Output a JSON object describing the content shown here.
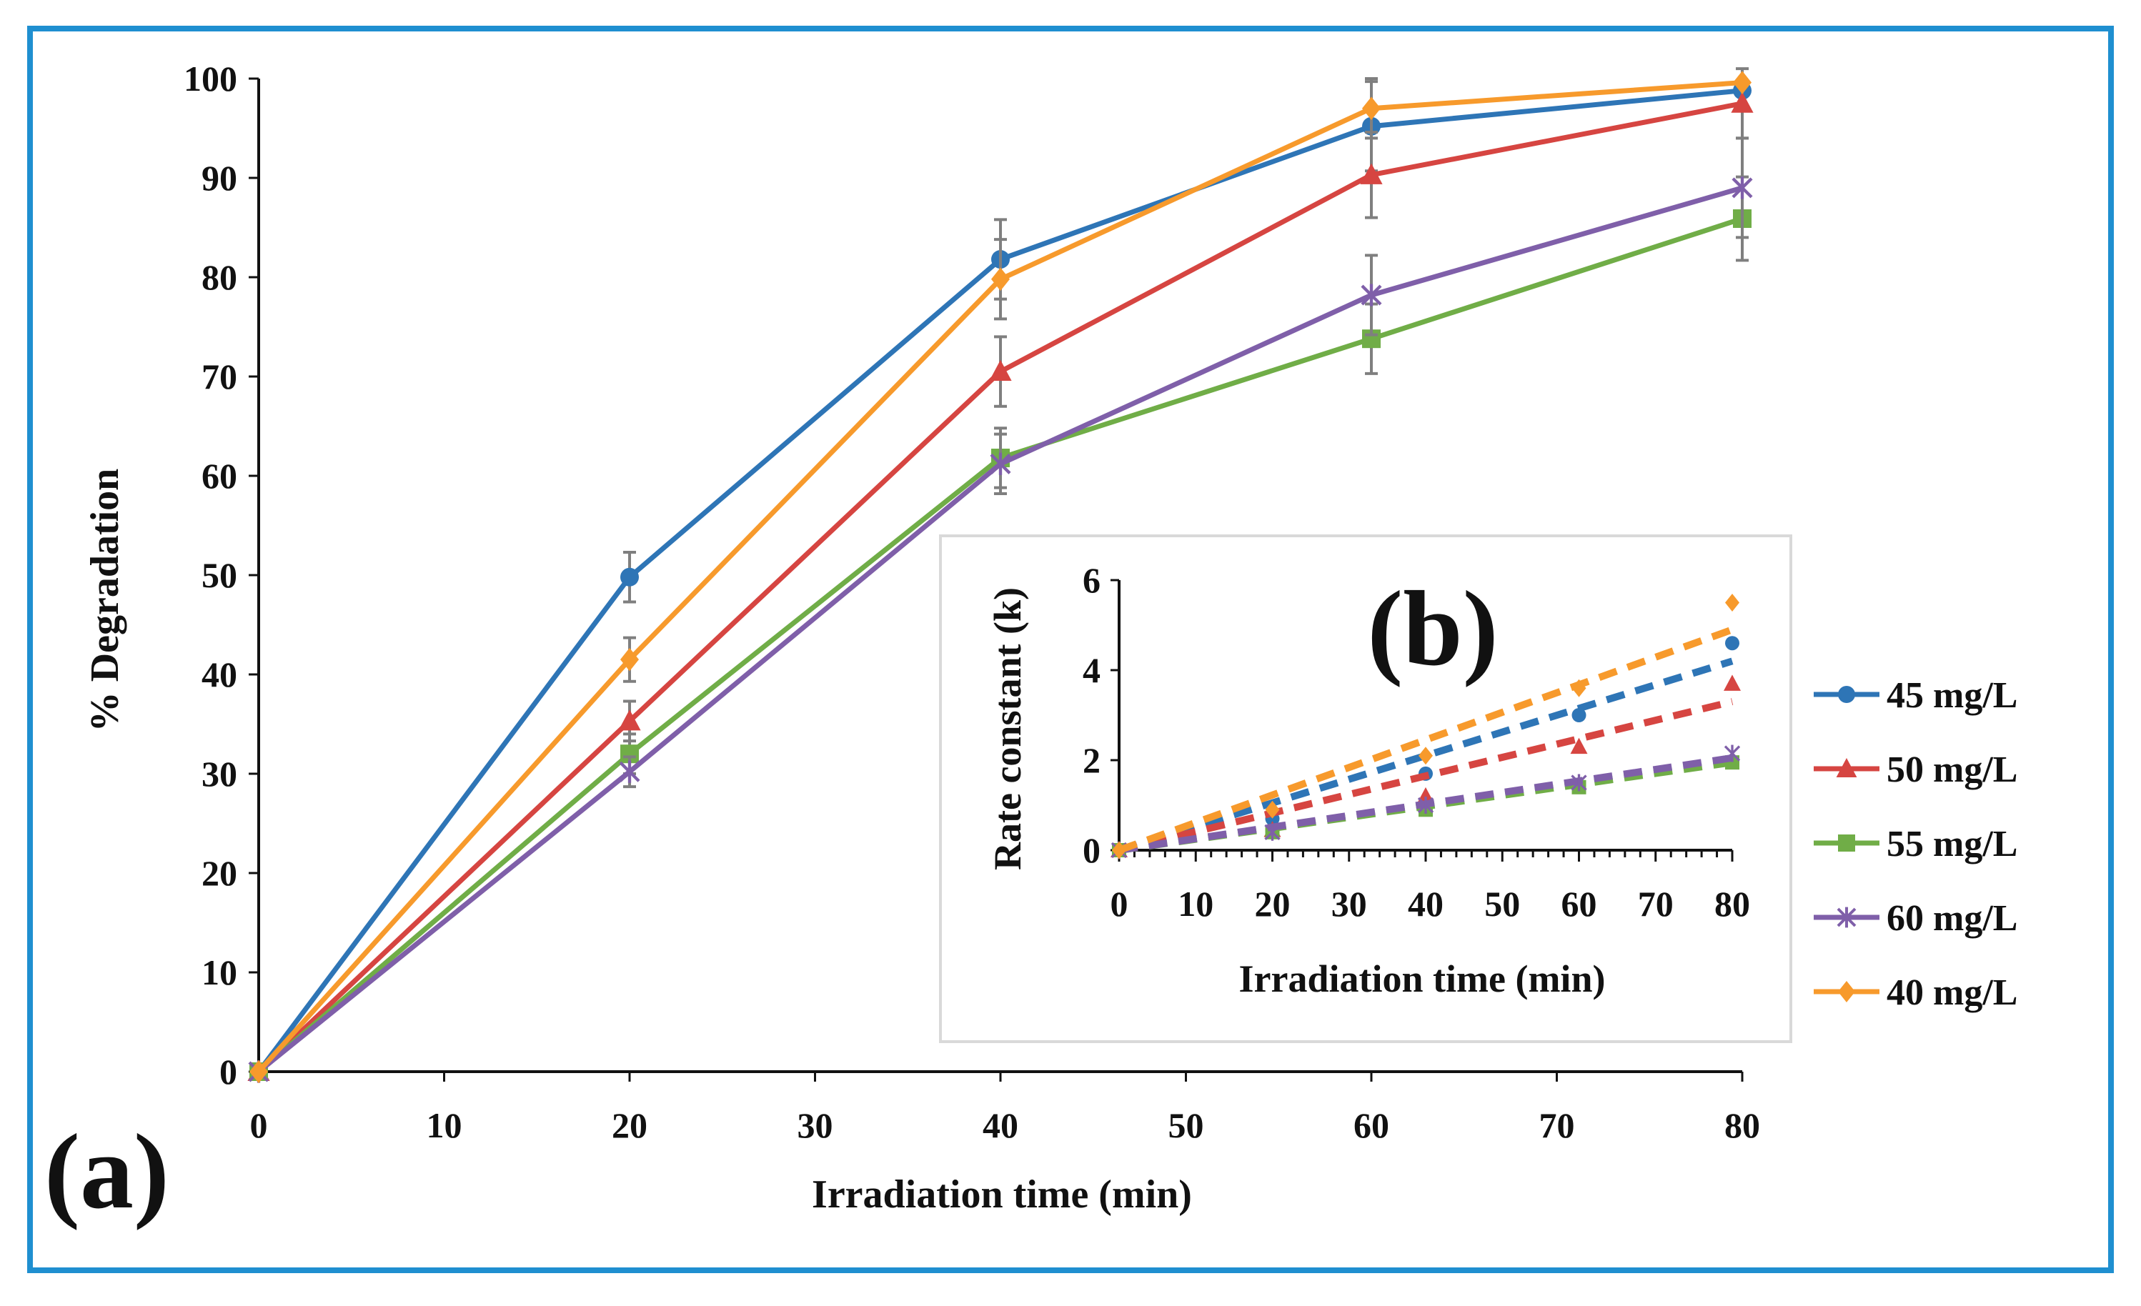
{
  "colors": {
    "frame": "#1f8fd0",
    "c45": "#2e75b6",
    "c50": "#d64541",
    "c55": "#70ad47",
    "c60": "#7f5fa9",
    "c40": "#f79a2c",
    "error": "#7f7f7f",
    "axis": "#111111"
  },
  "chart_data": [
    {
      "type": "line",
      "panel_label": "(a)",
      "title": "",
      "xlabel": "Irradiation time (min)",
      "ylabel": "% Degradation",
      "xlim": [
        0,
        80
      ],
      "ylim": [
        0,
        100
      ],
      "xticks": [
        0,
        10,
        20,
        30,
        40,
        50,
        60,
        70,
        80
      ],
      "yticks": [
        0,
        10,
        20,
        30,
        40,
        50,
        60,
        70,
        80,
        90,
        100
      ],
      "xtick_labels": [
        "0",
        "10",
        "20",
        "30",
        "40",
        "50",
        "60",
        "70",
        "80"
      ],
      "ytick_labels": [
        "0",
        "10",
        "20",
        "30",
        "40",
        "50",
        "60",
        "70",
        "80",
        "90",
        "100"
      ],
      "grid": false,
      "legend_position": "right",
      "x": [
        0,
        20,
        40,
        60,
        80
      ],
      "series": [
        {
          "name": "45 mg/L",
          "color_key": "c45",
          "marker": "circle",
          "values": [
            0,
            49.8,
            81.8,
            95.2,
            98.8
          ],
          "error": [
            0,
            2.5,
            4,
            4.5,
            0
          ]
        },
        {
          "name": "50 mg/L",
          "color_key": "c50",
          "marker": "triangle",
          "values": [
            0,
            35.3,
            70.5,
            90.3,
            97.5
          ],
          "error": [
            0,
            2,
            3.5,
            4.3,
            3.5
          ]
        },
        {
          "name": "55 mg/L",
          "color_key": "c55",
          "marker": "square",
          "values": [
            0,
            32.0,
            61.8,
            73.8,
            85.9
          ],
          "error": [
            0,
            2,
            3,
            3.5,
            4.2
          ]
        },
        {
          "name": "60 mg/L",
          "color_key": "c60",
          "marker": "star",
          "values": [
            0,
            30.2,
            61.2,
            78.2,
            89.0
          ],
          "error": [
            0,
            1.5,
            3,
            4,
            5
          ]
        },
        {
          "name": "40 mg/L",
          "color_key": "c40",
          "marker": "diamond",
          "values": [
            0,
            41.5,
            79.8,
            97.0,
            99.6
          ],
          "error": [
            0,
            2.2,
            4,
            3,
            0
          ]
        }
      ]
    },
    {
      "type": "scatter",
      "panel_label": "(b)",
      "title": "",
      "xlabel": "Irradiation time (min)",
      "ylabel": "Rate constant  (k)",
      "xlim": [
        0,
        80
      ],
      "ylim": [
        0,
        6
      ],
      "xticks": [
        0,
        10,
        20,
        30,
        40,
        50,
        60,
        70,
        80
      ],
      "yticks": [
        0,
        2,
        4,
        6
      ],
      "xtick_labels": [
        "0",
        "10",
        "20",
        "30",
        "40",
        "50",
        "60",
        "70",
        "80"
      ],
      "ytick_labels": [
        "0",
        "2",
        "4",
        "6"
      ],
      "grid": false,
      "x": [
        0,
        20,
        40,
        60,
        80
      ],
      "series": [
        {
          "name": "45 mg/L",
          "color_key": "c45",
          "marker": "circle",
          "values": [
            0,
            0.7,
            1.7,
            3.0,
            4.6
          ],
          "trend": [
            0,
            4.2
          ]
        },
        {
          "name": "50 mg/L",
          "color_key": "c50",
          "marker": "triangle",
          "values": [
            0,
            0.45,
            1.2,
            2.3,
            3.7
          ],
          "trend": [
            0,
            3.3
          ]
        },
        {
          "name": "55 mg/L",
          "color_key": "c55",
          "marker": "square",
          "values": [
            0,
            0.4,
            0.9,
            1.4,
            1.95
          ],
          "trend": [
            0,
            1.95
          ]
        },
        {
          "name": "60 mg/L",
          "color_key": "c60",
          "marker": "star",
          "values": [
            0,
            0.4,
            1.0,
            1.5,
            2.15
          ],
          "trend": [
            0,
            2.05
          ]
        },
        {
          "name": "40 mg/L",
          "color_key": "c40",
          "marker": "diamond",
          "values": [
            0,
            0.9,
            2.1,
            3.6,
            5.5
          ],
          "trend": [
            0,
            4.9
          ]
        }
      ]
    }
  ]
}
